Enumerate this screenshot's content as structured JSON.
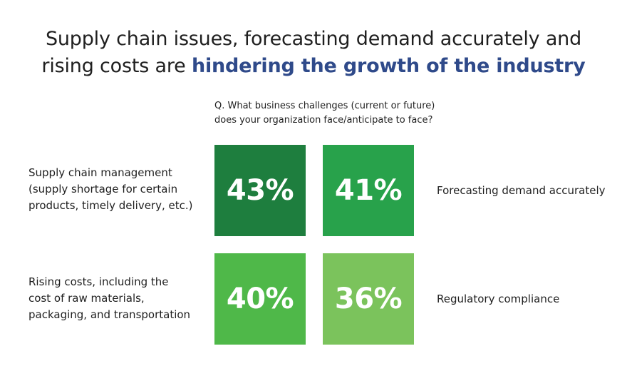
{
  "title": {
    "prefix_line1": "Supply chain issues, forecasting demand accurately and",
    "prefix_line2": "rising costs are ",
    "highlight": "hindering the growth of the industry"
  },
  "question": {
    "line1": "Q. What business challenges (current or future)",
    "line2": "does your organization face/anticipate to face?"
  },
  "chart_data": {
    "type": "table",
    "title": "Supply chain issues, forecasting demand accurately and rising costs are hindering the growth of the industry",
    "subtitle": "Q. What business challenges (current or future) does your organization face/anticipate to face?",
    "categories": [
      "Supply chain management (supply shortage for certain products, timely delivery, etc.)",
      "Forecasting demand accurately",
      "Rising costs, including the cost of raw materials, packaging, and transportation",
      "Regulatory compliance"
    ],
    "values": [
      43,
      41,
      40,
      36
    ],
    "value_labels": [
      "43%",
      "41%",
      "40%",
      "36%"
    ],
    "label_lines": [
      [
        "Supply chain management",
        "(supply shortage for certain",
        "products, timely delivery, etc.)"
      ],
      [
        "Forecasting demand accurately"
      ],
      [
        "Rising costs, including the",
        "cost of raw materials,",
        "packaging, and transportation"
      ],
      [
        "Regulatory compliance"
      ]
    ],
    "colors": [
      "#1e7e3e",
      "#28a24b",
      "#4fb849",
      "#7bc35c"
    ],
    "title_color": "#1f1f1f",
    "highlight_color": "#2f4a8a"
  }
}
